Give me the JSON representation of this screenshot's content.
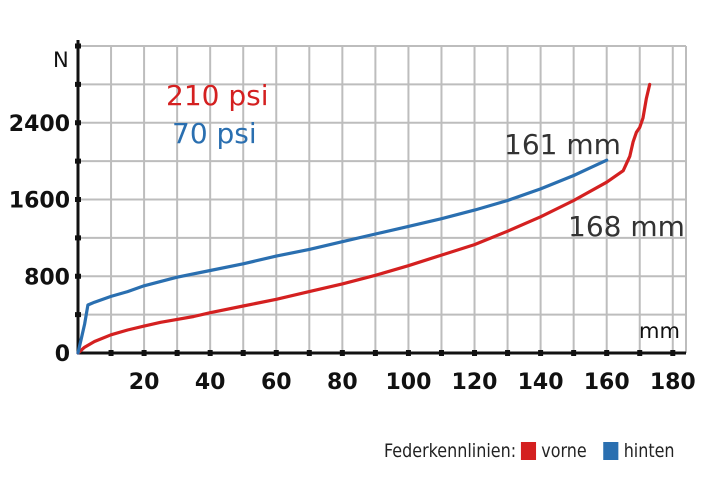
{
  "chart_data": {
    "type": "line",
    "ylabel": "N",
    "xlabel": "mm",
    "xlim": [
      0,
      184
    ],
    "ylim": [
      0,
      3200
    ],
    "x_ticks": [
      20,
      40,
      60,
      80,
      100,
      120,
      140,
      160,
      180
    ],
    "y_ticks": [
      0,
      800,
      1600,
      2400
    ],
    "annotations": {
      "red_pressure": "210 psi",
      "blue_pressure": "70 psi",
      "blue_end": "161 mm",
      "red_end": "168 mm"
    },
    "legend": {
      "title": "Federkennlinien:",
      "items": [
        {
          "label": "vorne",
          "color": "#d42020"
        },
        {
          "label": "hinten",
          "color": "#2a6fb0"
        }
      ]
    },
    "series": [
      {
        "name": "vorne",
        "color": "#d42020",
        "points": [
          [
            0,
            0
          ],
          [
            2,
            60
          ],
          [
            5,
            120
          ],
          [
            10,
            190
          ],
          [
            15,
            240
          ],
          [
            20,
            280
          ],
          [
            25,
            320
          ],
          [
            30,
            350
          ],
          [
            35,
            380
          ],
          [
            40,
            420
          ],
          [
            50,
            490
          ],
          [
            60,
            560
          ],
          [
            70,
            640
          ],
          [
            80,
            720
          ],
          [
            90,
            810
          ],
          [
            100,
            910
          ],
          [
            110,
            1020
          ],
          [
            120,
            1130
          ],
          [
            130,
            1270
          ],
          [
            140,
            1420
          ],
          [
            150,
            1590
          ],
          [
            160,
            1780
          ],
          [
            165,
            1900
          ],
          [
            167,
            2050
          ],
          [
            168,
            2200
          ],
          [
            169,
            2300
          ],
          [
            170,
            2350
          ],
          [
            171,
            2450
          ],
          [
            172,
            2650
          ],
          [
            173,
            2800
          ]
        ]
      },
      {
        "name": "hinten",
        "color": "#2a6fb0",
        "points": [
          [
            0,
            0
          ],
          [
            1,
            150
          ],
          [
            2,
            300
          ],
          [
            3,
            500
          ],
          [
            5,
            530
          ],
          [
            10,
            590
          ],
          [
            15,
            640
          ],
          [
            20,
            700
          ],
          [
            30,
            790
          ],
          [
            40,
            860
          ],
          [
            50,
            930
          ],
          [
            60,
            1010
          ],
          [
            70,
            1080
          ],
          [
            80,
            1160
          ],
          [
            90,
            1240
          ],
          [
            100,
            1320
          ],
          [
            110,
            1400
          ],
          [
            120,
            1490
          ],
          [
            130,
            1590
          ],
          [
            140,
            1710
          ],
          [
            150,
            1850
          ],
          [
            155,
            1930
          ],
          [
            160,
            2010
          ]
        ]
      }
    ]
  }
}
